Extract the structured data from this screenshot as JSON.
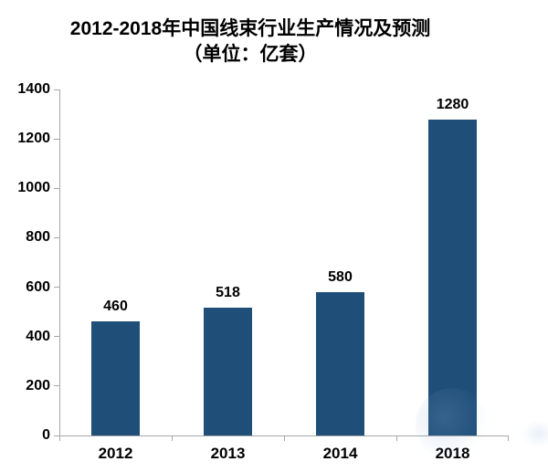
{
  "page": {
    "background": "#ffffff"
  },
  "chart_data": {
    "type": "bar",
    "title": "2012-2018年中国线束行业生产情况及预测",
    "subtitle": "（单位：亿套）",
    "categories": [
      "2012",
      "2013",
      "2014",
      "2018"
    ],
    "values": [
      460,
      518,
      580,
      1280
    ],
    "data_labels": [
      "460",
      "518",
      "580",
      "1280"
    ],
    "xlabel": "",
    "ylabel": "",
    "ylim": [
      0,
      1400
    ],
    "yticks": [
      0,
      200,
      400,
      600,
      800,
      1000,
      1200,
      1400
    ],
    "grid": false,
    "legend_position": "none",
    "bar_color": "#1F4E79",
    "axis_color": "#A6A6A6",
    "text_color": "#000000"
  }
}
